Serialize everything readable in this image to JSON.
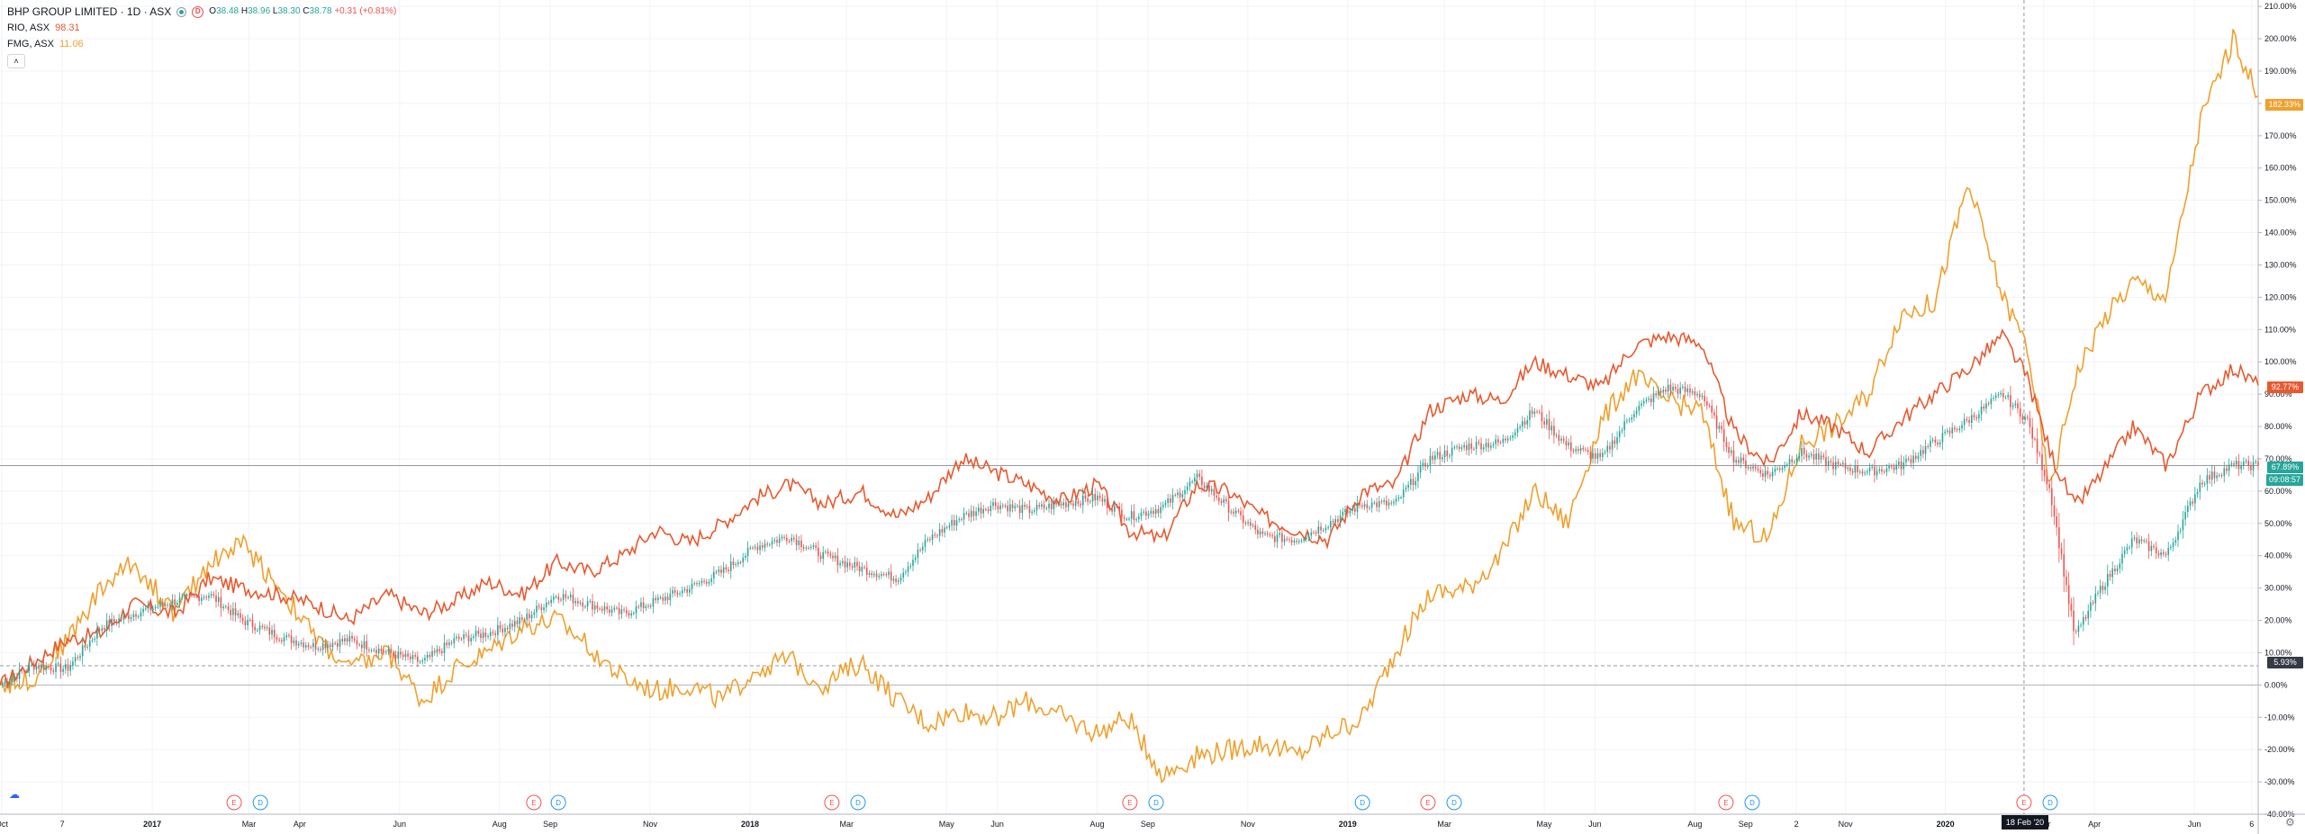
{
  "legend": {
    "main": {
      "name": "BHP GROUP LIMITED · 1D · ASX",
      "ohlc": [
        {
          "label": "O",
          "value": "38.48"
        },
        {
          "label": "H",
          "value": "38.96"
        },
        {
          "label": "L",
          "value": "38.30"
        },
        {
          "label": "C",
          "value": "38.78"
        }
      ],
      "change": "+0.31 (+0.81%)",
      "status_icon": "market-open-dot-icon",
      "dividend_icon_letter": "D"
    },
    "compare": [
      {
        "symbol": "RIO, ASX",
        "value": "98.31",
        "color": "#e8592f"
      },
      {
        "symbol": "FMG, ASX",
        "value": "11.06",
        "color": "#f0a02c"
      }
    ],
    "collapse_glyph": "˄"
  },
  "price_badges": {
    "fmg": "182.33%",
    "rio": "92.77%",
    "bhp_pct": "67.89%",
    "bhp_timer": "09:08:57",
    "crosshair": "5.93%"
  },
  "crosshair_date": "18 Feb '20",
  "colors": {
    "rio": "#e8592f",
    "fmg": "#f0a02c",
    "bhp_up": "#26a69a",
    "bhp_down": "#ef5350",
    "bhp_neutral": "#2a2e39",
    "earnings": "#ef5350",
    "dividend": "#2196f3"
  },
  "event_markers": {
    "earnings_letter": "E",
    "dividend_letter": "D",
    "items": [
      {
        "type": "E",
        "date": "2017-02-20"
      },
      {
        "type": "D",
        "date": "2017-03-08"
      },
      {
        "type": "E",
        "date": "2017-08-22"
      },
      {
        "type": "D",
        "date": "2017-09-06"
      },
      {
        "type": "E",
        "date": "2018-02-20"
      },
      {
        "type": "D",
        "date": "2018-03-08"
      },
      {
        "type": "E",
        "date": "2018-08-21"
      },
      {
        "type": "D",
        "date": "2018-09-06"
      },
      {
        "type": "D",
        "date": "2019-01-10"
      },
      {
        "type": "E",
        "date": "2019-02-19"
      },
      {
        "type": "D",
        "date": "2019-03-07"
      },
      {
        "type": "E",
        "date": "2019-08-20"
      },
      {
        "type": "D",
        "date": "2019-09-05"
      },
      {
        "type": "E",
        "date": "2020-02-18"
      },
      {
        "type": "D",
        "date": "2020-03-05"
      }
    ]
  },
  "toolbar": {
    "settings_icon": "gear-icon",
    "logo_icon": "tradingview-logo-icon"
  },
  "chart_data": {
    "type": "line",
    "x_axis": {
      "type": "date",
      "range": [
        "2016-09-30",
        "2020-07-10"
      ],
      "tick_labels": [
        {
          "date": "2016-10-01",
          "label": "Oct"
        },
        {
          "date": "2016-11-07",
          "label": "7"
        },
        {
          "date": "2017-01-01",
          "label": "2017"
        },
        {
          "date": "2017-03-01",
          "label": "Mar"
        },
        {
          "date": "2017-04-01",
          "label": "Apr"
        },
        {
          "date": "2017-06-01",
          "label": "Jun"
        },
        {
          "date": "2017-08-01",
          "label": "Aug"
        },
        {
          "date": "2017-09-01",
          "label": "Sep"
        },
        {
          "date": "2017-11-01",
          "label": "Nov"
        },
        {
          "date": "2018-01-01",
          "label": "2018"
        },
        {
          "date": "2018-03-01",
          "label": "Mar"
        },
        {
          "date": "2018-05-01",
          "label": "May"
        },
        {
          "date": "2018-06-01",
          "label": "Jun"
        },
        {
          "date": "2018-08-01",
          "label": "Aug"
        },
        {
          "date": "2018-09-01",
          "label": "Sep"
        },
        {
          "date": "2018-11-01",
          "label": "Nov"
        },
        {
          "date": "2019-01-01",
          "label": "2019"
        },
        {
          "date": "2019-03-01",
          "label": "Mar"
        },
        {
          "date": "2019-05-01",
          "label": "May"
        },
        {
          "date": "2019-06-01",
          "label": "Jun"
        },
        {
          "date": "2019-08-01",
          "label": "Aug"
        },
        {
          "date": "2019-09-01",
          "label": "Sep"
        },
        {
          "date": "2019-10-02",
          "label": "2"
        },
        {
          "date": "2019-11-01",
          "label": "Nov"
        },
        {
          "date": "2020-01-01",
          "label": "2020"
        },
        {
          "date": "2020-03-01",
          "label": "Mar"
        },
        {
          "date": "2020-04-01",
          "label": "Apr"
        },
        {
          "date": "2020-06-01",
          "label": "Jun"
        },
        {
          "date": "2020-07-06",
          "label": "6"
        }
      ]
    },
    "y_axis": {
      "unit": "%",
      "range": [
        -40,
        212
      ],
      "ticks": [
        -40,
        -30,
        -20,
        -10,
        0,
        10,
        20,
        30,
        40,
        50,
        60,
        70,
        80,
        90,
        100,
        110,
        120,
        130,
        140,
        150,
        160,
        170,
        180,
        190,
        200,
        210
      ],
      "tick_labels": [
        "-40.00%",
        "-30.00%",
        "-20.00%",
        "-10.00%",
        "0.00%",
        "10.00%",
        "20.00%",
        "30.00%",
        "40.00%",
        "50.00%",
        "60.00%",
        "70.00%",
        "80.00%",
        "90.00%",
        "100.00%",
        "110.00%",
        "120.00%",
        "130.00%",
        "140.00%",
        "150.00%",
        "160.00%",
        "170.00%",
        "180.00%",
        "190.00%",
        "200.00%",
        "210.00%"
      ]
    },
    "grid": true,
    "crosshair": {
      "date": "2020-02-18",
      "value": 5.93
    },
    "series": [
      {
        "name": "BHP GROUP LIMITED",
        "style": "candles",
        "points": [
          [
            "2016-09-30",
            0
          ],
          [
            "2016-10-20",
            6
          ],
          [
            "2016-11-10",
            5
          ],
          [
            "2016-12-01",
            18
          ],
          [
            "2016-12-20",
            22
          ],
          [
            "2017-01-15",
            26
          ],
          [
            "2017-02-05",
            28
          ],
          [
            "2017-02-25",
            20
          ],
          [
            "2017-03-20",
            15
          ],
          [
            "2017-04-10",
            12
          ],
          [
            "2017-05-01",
            14
          ],
          [
            "2017-05-25",
            10
          ],
          [
            "2017-06-15",
            7
          ],
          [
            "2017-07-05",
            14
          ],
          [
            "2017-07-25",
            16
          ],
          [
            "2017-08-15",
            20
          ],
          [
            "2017-09-05",
            28
          ],
          [
            "2017-09-25",
            25
          ],
          [
            "2017-10-15",
            22
          ],
          [
            "2017-11-05",
            26
          ],
          [
            "2017-11-25",
            30
          ],
          [
            "2017-12-15",
            35
          ],
          [
            "2018-01-05",
            43
          ],
          [
            "2018-01-25",
            46
          ],
          [
            "2018-02-15",
            40
          ],
          [
            "2018-03-10",
            36
          ],
          [
            "2018-04-01",
            33
          ],
          [
            "2018-04-20",
            45
          ],
          [
            "2018-05-10",
            52
          ],
          [
            "2018-05-30",
            56
          ],
          [
            "2018-06-20",
            54
          ],
          [
            "2018-07-10",
            56
          ],
          [
            "2018-08-01",
            58
          ],
          [
            "2018-08-20",
            52
          ],
          [
            "2018-09-10",
            55
          ],
          [
            "2018-10-01",
            64
          ],
          [
            "2018-10-20",
            55
          ],
          [
            "2018-11-10",
            46
          ],
          [
            "2018-12-01",
            45
          ],
          [
            "2018-12-20",
            50
          ],
          [
            "2019-01-10",
            56
          ],
          [
            "2019-01-30",
            56
          ],
          [
            "2019-02-20",
            70
          ],
          [
            "2019-03-15",
            74
          ],
          [
            "2019-04-05",
            75
          ],
          [
            "2019-04-25",
            85
          ],
          [
            "2019-05-15",
            74
          ],
          [
            "2019-06-05",
            70
          ],
          [
            "2019-06-25",
            85
          ],
          [
            "2019-07-15",
            92
          ],
          [
            "2019-08-05",
            90
          ],
          [
            "2019-08-25",
            70
          ],
          [
            "2019-09-15",
            65
          ],
          [
            "2019-10-05",
            72
          ],
          [
            "2019-10-25",
            68
          ],
          [
            "2019-11-15",
            66
          ],
          [
            "2019-12-05",
            68
          ],
          [
            "2019-12-25",
            75
          ],
          [
            "2020-01-15",
            82
          ],
          [
            "2020-02-05",
            90
          ],
          [
            "2020-02-20",
            82
          ],
          [
            "2020-03-05",
            60
          ],
          [
            "2020-03-20",
            15
          ],
          [
            "2020-04-05",
            30
          ],
          [
            "2020-04-25",
            45
          ],
          [
            "2020-05-15",
            40
          ],
          [
            "2020-06-05",
            63
          ],
          [
            "2020-06-25",
            68
          ],
          [
            "2020-07-10",
            67.89
          ]
        ]
      },
      {
        "name": "RIO, ASX",
        "style": "line",
        "points": [
          [
            "2016-09-30",
            0
          ],
          [
            "2016-10-20",
            7
          ],
          [
            "2016-11-10",
            14
          ],
          [
            "2016-12-01",
            16
          ],
          [
            "2016-12-20",
            25
          ],
          [
            "2017-01-15",
            22
          ],
          [
            "2017-02-05",
            33
          ],
          [
            "2017-02-25",
            30
          ],
          [
            "2017-03-20",
            28
          ],
          [
            "2017-04-10",
            25
          ],
          [
            "2017-05-01",
            20
          ],
          [
            "2017-05-25",
            28
          ],
          [
            "2017-06-15",
            22
          ],
          [
            "2017-07-05",
            26
          ],
          [
            "2017-07-25",
            32
          ],
          [
            "2017-08-15",
            28
          ],
          [
            "2017-09-05",
            38
          ],
          [
            "2017-09-25",
            35
          ],
          [
            "2017-10-15",
            40
          ],
          [
            "2017-11-05",
            48
          ],
          [
            "2017-11-25",
            44
          ],
          [
            "2017-12-15",
            50
          ],
          [
            "2018-01-05",
            58
          ],
          [
            "2018-01-25",
            62
          ],
          [
            "2018-02-15",
            56
          ],
          [
            "2018-03-10",
            60
          ],
          [
            "2018-04-01",
            52
          ],
          [
            "2018-04-20",
            58
          ],
          [
            "2018-05-10",
            70
          ],
          [
            "2018-05-30",
            66
          ],
          [
            "2018-06-20",
            62
          ],
          [
            "2018-07-10",
            57
          ],
          [
            "2018-08-01",
            62
          ],
          [
            "2018-08-20",
            48
          ],
          [
            "2018-09-10",
            45
          ],
          [
            "2018-10-01",
            62
          ],
          [
            "2018-10-20",
            60
          ],
          [
            "2018-11-10",
            52
          ],
          [
            "2018-12-01",
            48
          ],
          [
            "2018-12-20",
            45
          ],
          [
            "2019-01-10",
            60
          ],
          [
            "2019-01-30",
            62
          ],
          [
            "2019-02-20",
            85
          ],
          [
            "2019-03-15",
            90
          ],
          [
            "2019-04-05",
            88
          ],
          [
            "2019-04-25",
            100
          ],
          [
            "2019-05-15",
            96
          ],
          [
            "2019-06-05",
            92
          ],
          [
            "2019-06-25",
            105
          ],
          [
            "2019-07-15",
            108
          ],
          [
            "2019-08-05",
            106
          ],
          [
            "2019-08-25",
            78
          ],
          [
            "2019-09-15",
            68
          ],
          [
            "2019-10-05",
            84
          ],
          [
            "2019-10-25",
            80
          ],
          [
            "2019-11-15",
            72
          ],
          [
            "2019-12-05",
            82
          ],
          [
            "2019-12-25",
            90
          ],
          [
            "2020-01-15",
            98
          ],
          [
            "2020-02-05",
            108
          ],
          [
            "2020-02-20",
            95
          ],
          [
            "2020-03-05",
            72
          ],
          [
            "2020-03-20",
            55
          ],
          [
            "2020-04-05",
            65
          ],
          [
            "2020-04-25",
            80
          ],
          [
            "2020-05-15",
            68
          ],
          [
            "2020-06-05",
            90
          ],
          [
            "2020-06-25",
            98
          ],
          [
            "2020-07-10",
            92.77
          ]
        ]
      },
      {
        "name": "FMG, ASX",
        "style": "line",
        "points": [
          [
            "2016-09-30",
            0
          ],
          [
            "2016-10-20",
            2
          ],
          [
            "2016-11-10",
            14
          ],
          [
            "2016-12-01",
            30
          ],
          [
            "2016-12-20",
            38
          ],
          [
            "2017-01-15",
            22
          ],
          [
            "2017-02-05",
            38
          ],
          [
            "2017-02-25",
            44
          ],
          [
            "2017-03-20",
            30
          ],
          [
            "2017-04-10",
            15
          ],
          [
            "2017-05-01",
            5
          ],
          [
            "2017-05-25",
            10
          ],
          [
            "2017-06-15",
            -5
          ],
          [
            "2017-07-05",
            5
          ],
          [
            "2017-07-25",
            10
          ],
          [
            "2017-08-15",
            18
          ],
          [
            "2017-09-05",
            20
          ],
          [
            "2017-09-25",
            12
          ],
          [
            "2017-10-15",
            2
          ],
          [
            "2017-11-05",
            -2
          ],
          [
            "2017-11-25",
            0
          ],
          [
            "2017-12-15",
            -5
          ],
          [
            "2018-01-05",
            5
          ],
          [
            "2018-01-25",
            8
          ],
          [
            "2018-02-15",
            0
          ],
          [
            "2018-03-10",
            7
          ],
          [
            "2018-04-01",
            -5
          ],
          [
            "2018-04-20",
            -12
          ],
          [
            "2018-05-10",
            -8
          ],
          [
            "2018-05-30",
            -10
          ],
          [
            "2018-06-20",
            -5
          ],
          [
            "2018-07-10",
            -10
          ],
          [
            "2018-08-01",
            -15
          ],
          [
            "2018-08-20",
            -10
          ],
          [
            "2018-09-10",
            -28
          ],
          [
            "2018-10-01",
            -22
          ],
          [
            "2018-10-20",
            -20
          ],
          [
            "2018-11-10",
            -18
          ],
          [
            "2018-12-01",
            -22
          ],
          [
            "2018-12-20",
            -15
          ],
          [
            "2019-01-10",
            -10
          ],
          [
            "2019-01-30",
            10
          ],
          [
            "2019-02-20",
            28
          ],
          [
            "2019-03-15",
            30
          ],
          [
            "2019-04-05",
            40
          ],
          [
            "2019-04-25",
            60
          ],
          [
            "2019-05-15",
            50
          ],
          [
            "2019-06-05",
            82
          ],
          [
            "2019-06-25",
            96
          ],
          [
            "2019-07-15",
            88
          ],
          [
            "2019-08-05",
            85
          ],
          [
            "2019-08-25",
            50
          ],
          [
            "2019-09-15",
            45
          ],
          [
            "2019-10-05",
            75
          ],
          [
            "2019-10-25",
            80
          ],
          [
            "2019-11-15",
            90
          ],
          [
            "2019-12-05",
            115
          ],
          [
            "2019-12-25",
            118
          ],
          [
            "2020-01-15",
            155
          ],
          [
            "2020-02-05",
            120
          ],
          [
            "2020-02-20",
            105
          ],
          [
            "2020-03-05",
            60
          ],
          [
            "2020-03-20",
            95
          ],
          [
            "2020-04-05",
            112
          ],
          [
            "2020-04-25",
            125
          ],
          [
            "2020-05-15",
            120
          ],
          [
            "2020-06-05",
            175
          ],
          [
            "2020-06-25",
            200
          ],
          [
            "2020-07-10",
            182.33
          ]
        ]
      }
    ]
  }
}
